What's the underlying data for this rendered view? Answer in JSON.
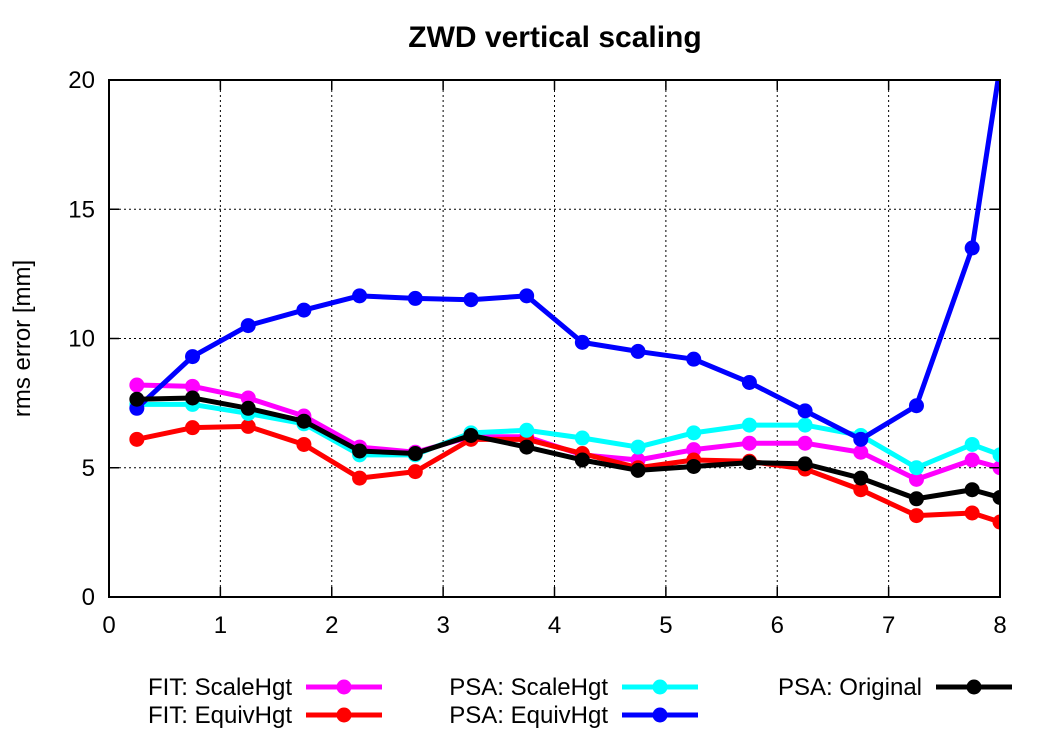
{
  "chart_data": {
    "type": "line",
    "title": "ZWD vertical scaling",
    "xlabel": "",
    "ylabel": "rms error [mm]",
    "xlim": [
      0,
      8
    ],
    "ylim": [
      0,
      20
    ],
    "x_ticks": [
      0,
      1,
      2,
      3,
      4,
      5,
      6,
      7,
      8
    ],
    "y_ticks": [
      0,
      5,
      10,
      15,
      20
    ],
    "grid": true,
    "legend_position": "bottom",
    "x": [
      0.25,
      0.75,
      1.25,
      1.75,
      2.25,
      2.75,
      3.25,
      3.75,
      4.25,
      4.75,
      5.25,
      5.75,
      6.25,
      6.75,
      7.25,
      7.75,
      8.0
    ],
    "series": [
      {
        "name": "FIT: ScaleHgt",
        "color": "#ff00ff",
        "values": [
          8.2,
          8.15,
          7.7,
          7.0,
          5.8,
          5.6,
          6.2,
          6.2,
          5.5,
          5.3,
          5.7,
          5.95,
          5.95,
          5.6,
          4.55,
          5.3,
          5.0
        ]
      },
      {
        "name": "FIT: EquivHgt",
        "color": "#ff0000",
        "values": [
          6.1,
          6.55,
          6.6,
          5.9,
          4.6,
          4.85,
          6.1,
          6.1,
          5.55,
          5.0,
          5.3,
          5.25,
          4.95,
          4.15,
          3.15,
          3.25,
          2.9
        ]
      },
      {
        "name": "PSA: ScaleHgt",
        "color": "#00ffff",
        "values": [
          7.45,
          7.45,
          7.1,
          6.7,
          5.5,
          5.5,
          6.35,
          6.45,
          6.15,
          5.8,
          6.35,
          6.65,
          6.65,
          6.25,
          5.0,
          5.9,
          5.5
        ]
      },
      {
        "name": "PSA: EquivHgt",
        "color": "#0000ff",
        "values": [
          7.3,
          9.3,
          10.5,
          11.1,
          11.65,
          11.55,
          11.5,
          11.65,
          9.85,
          9.5,
          9.2,
          8.3,
          7.2,
          6.1,
          7.4,
          13.5,
          20.5
        ]
      },
      {
        "name": "PSA: Original",
        "color": "#000000",
        "values": [
          7.65,
          7.7,
          7.3,
          6.8,
          5.65,
          5.55,
          6.25,
          5.8,
          5.3,
          4.9,
          5.05,
          5.2,
          5.15,
          4.6,
          3.8,
          4.15,
          3.85
        ]
      }
    ]
  }
}
